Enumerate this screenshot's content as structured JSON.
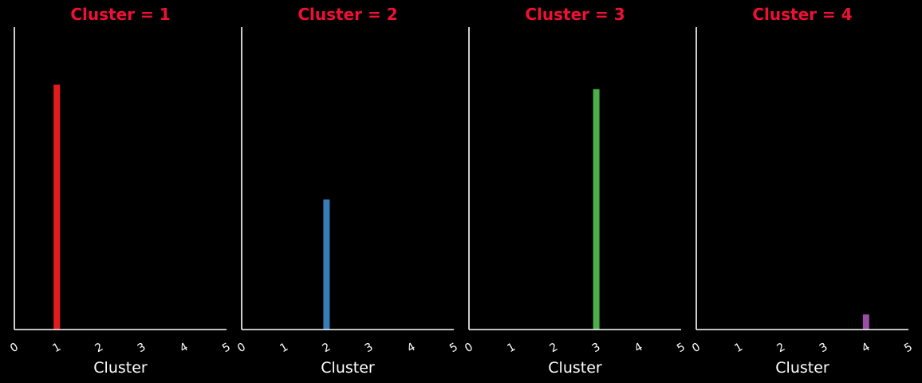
{
  "chart_data": [
    {
      "type": "bar",
      "title": "Cluster = 1",
      "xlabel": "Cluster",
      "ylabel": "",
      "xlim": [
        0,
        5
      ],
      "x_ticks": [
        "0",
        "1",
        "2",
        "3",
        "4",
        "5"
      ],
      "bars": [
        {
          "x": 1,
          "value": 0.81
        }
      ],
      "color": "#e41a1c",
      "grid": false,
      "legend": "none"
    },
    {
      "type": "bar",
      "title": "Cluster = 2",
      "xlabel": "Cluster",
      "ylabel": "",
      "xlim": [
        0,
        5
      ],
      "x_ticks": [
        "0",
        "1",
        "2",
        "3",
        "4",
        "5"
      ],
      "bars": [
        {
          "x": 2,
          "value": 0.43
        }
      ],
      "color": "#377eb8",
      "grid": false,
      "legend": "none"
    },
    {
      "type": "bar",
      "title": "Cluster = 3",
      "xlabel": "Cluster",
      "ylabel": "",
      "xlim": [
        0,
        5
      ],
      "x_ticks": [
        "0",
        "1",
        "2",
        "3",
        "4",
        "5"
      ],
      "bars": [
        {
          "x": 3,
          "value": 0.795
        }
      ],
      "color": "#4daf4a",
      "grid": false,
      "legend": "none"
    },
    {
      "type": "bar",
      "title": "Cluster = 4",
      "xlabel": "Cluster",
      "ylabel": "",
      "xlim": [
        0,
        5
      ],
      "x_ticks": [
        "0",
        "1",
        "2",
        "3",
        "4",
        "5"
      ],
      "bars": [
        {
          "x": 4,
          "value": 0.05
        }
      ],
      "color": "#984ea3",
      "grid": false,
      "legend": "none"
    }
  ],
  "shared_ylim": [
    0,
    1
  ]
}
